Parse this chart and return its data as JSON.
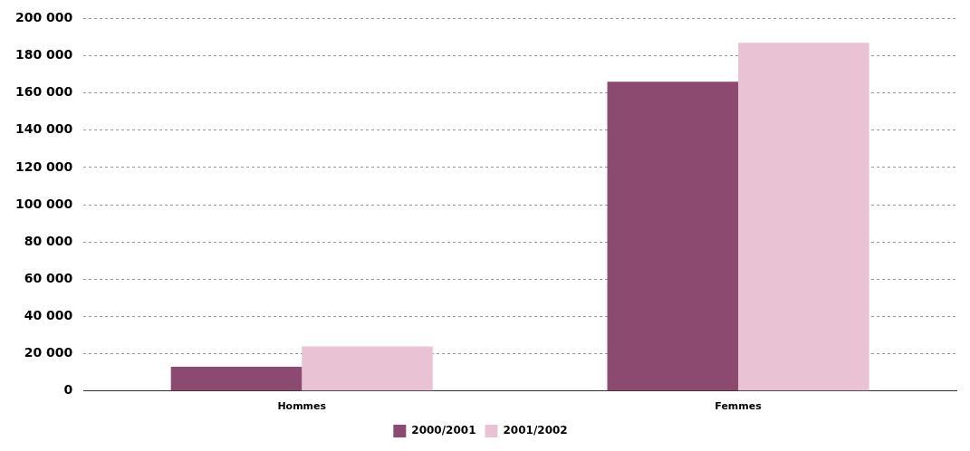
{
  "chart_data": {
    "type": "bar",
    "categories": [
      "Hommes",
      "Femmes"
    ],
    "series": [
      {
        "name": "2000/2001",
        "color": "#8c4a70",
        "values": [
          13000,
          166000
        ]
      },
      {
        "name": "2001/2002",
        "color": "#e9c3d3",
        "values": [
          24000,
          187000
        ]
      }
    ],
    "ylim": [
      0,
      200000
    ],
    "yticks": [
      {
        "value": 0,
        "label": "0"
      },
      {
        "value": 20000,
        "label": "20 000"
      },
      {
        "value": 40000,
        "label": "40 000"
      },
      {
        "value": 60000,
        "label": "60 000"
      },
      {
        "value": 80000,
        "label": "80 000"
      },
      {
        "value": 100000,
        "label": "100 000"
      },
      {
        "value": 120000,
        "label": "120 000"
      },
      {
        "value": 140000,
        "label": "140 000"
      },
      {
        "value": 160000,
        "label": "160 000"
      },
      {
        "value": 180000,
        "label": "180 000"
      },
      {
        "value": 200000,
        "label": "200 000"
      }
    ],
    "grid": "y",
    "legend": "bottom"
  }
}
